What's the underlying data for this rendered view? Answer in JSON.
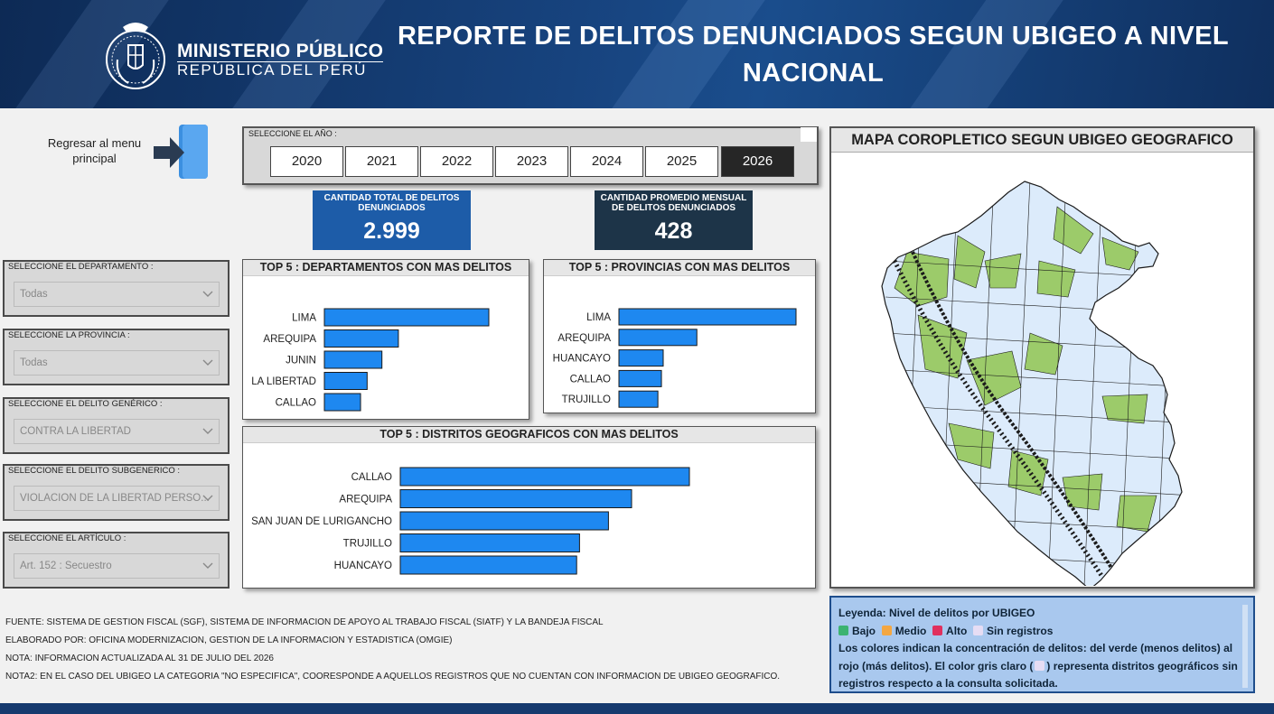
{
  "header": {
    "ministry_line1": "MINISTERIO PÚBLICO",
    "ministry_line2": "REPÚBLICA DEL PERÚ",
    "title": "REPORTE DE DELITOS DENUNCIADOS SEGUN UBIGEO A NIVEL NACIONAL"
  },
  "back": {
    "label": "Regresar al menu principal"
  },
  "years": {
    "label": "SELECCIONE EL AÑO :",
    "options": [
      "2020",
      "2021",
      "2022",
      "2023",
      "2024",
      "2025",
      "2026"
    ],
    "selected": "2026"
  },
  "kpis": {
    "total_label": "CANTIDAD TOTAL DE DELITOS DENUNCIADOS",
    "total_value": "2.999",
    "avg_label": "CANTIDAD PROMEDIO MENSUAL DE DELITOS DENUNCIADOS",
    "avg_value": "428"
  },
  "filters": [
    {
      "label": "SELECCIONE EL DEPARTAMENTO :",
      "value": "Todas"
    },
    {
      "label": "SELECCIONE LA PROVINCIA :",
      "value": "Todas"
    },
    {
      "label": "SELECCIONE EL DELITO GENÉRICO :",
      "value": "CONTRA LA LIBERTAD"
    },
    {
      "label": "SELECCIONE EL DELITO SUBGENERICO :",
      "value": "VIOLACION DE LA LIBERTAD PERSO..."
    },
    {
      "label": "SELECCIONE EL ARTÍCULO :",
      "value": "Art. 152 : Secuestro"
    }
  ],
  "chart_data": [
    {
      "type": "bar",
      "orientation": "horizontal",
      "title": "TOP 5 : DEPARTAMENTOS CON MAS DELITOS",
      "categories": [
        "LIMA",
        "AREQUIPA",
        "JUNIN",
        "LA LIBERTAD",
        "CALLAO"
      ],
      "values": [
        100,
        45,
        35,
        26,
        22
      ],
      "color": "#1e88f0"
    },
    {
      "type": "bar",
      "orientation": "horizontal",
      "title": "TOP 5 : PROVINCIAS CON MAS DELITOS",
      "categories": [
        "LIMA",
        "AREQUIPA",
        "HUANCAYO",
        "CALLAO",
        "TRUJILLO"
      ],
      "values": [
        100,
        44,
        25,
        24,
        22
      ],
      "color": "#1e88f0"
    },
    {
      "type": "bar",
      "orientation": "horizontal",
      "title": "TOP 5 : DISTRITOS GEOGRAFICOS CON MAS DELITOS",
      "categories": [
        "CALLAO",
        "AREQUIPA",
        "SAN JUAN DE LURIGANCHO",
        "TRUJILLO",
        "HUANCAYO"
      ],
      "values": [
        100,
        80,
        72,
        62,
        61
      ],
      "color": "#1e88f0"
    }
  ],
  "map": {
    "title": "MAPA COROPLETICO SEGUN UBIGEO GEOGRAFICO",
    "fill_light": "#dcebfb",
    "fill_green": "#9ccb6a"
  },
  "legend": {
    "heading": "Leyenda: Nivel de delitos por UBIGEO",
    "items": [
      {
        "label": "Bajo",
        "color": "#3cb371"
      },
      {
        "label": "Medio",
        "color": "#f4a742"
      },
      {
        "label": "Alto",
        "color": "#e0305e"
      },
      {
        "label": "Sin registros",
        "color": "#e6ddf4"
      }
    ],
    "text_part1": "Los colores indican la concentración de delitos: del verde (menos delitos) al rojo (más delitos). El color gris claro (",
    "text_part2": ") representa distritos geográficos sin registros respecto a la consulta solicitada."
  },
  "notes": [
    "FUENTE: SISTEMA DE GESTION FISCAL (SGF), SISTEMA DE INFORMACION DE APOYO AL TRABAJO FISCAL (SIATF) Y LA BANDEJA FISCAL",
    "ELABORADO POR: OFICINA MODERNIZACION, GESTION DE LA INFORMACION Y ESTADISTICA (OMGIE)",
    "NOTA: INFORMACION ACTUALIZADA AL 31 DE JULIO DEL 2026",
    "NOTA2: EN EL CASO DEL UBIGEO LA CATEGORIA \"NO ESPECIFICA\", COORESPONDE A AQUELLOS REGISTROS QUE NO CUENTAN CON INFORMACION DE UBIGEO GEOGRAFICO."
  ]
}
